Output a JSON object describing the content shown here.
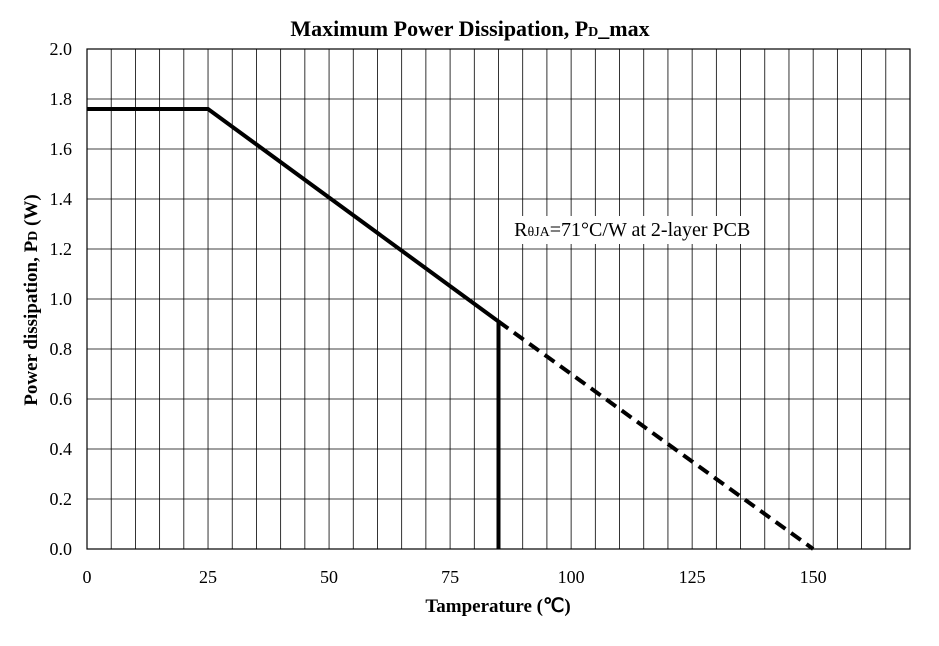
{
  "chart_data": {
    "type": "line",
    "title_main": "Maximum Power Dissipation, P",
    "title_sub": "D",
    "title_tail": "_max",
    "xlabel": "Tamperature (℃)",
    "ylabel_main": "Power dissipation, P",
    "ylabel_sub": "D",
    "ylabel_tail": " (W)",
    "xlim": [
      0,
      170
    ],
    "ylim": [
      0,
      2.0
    ],
    "x_ticks": [
      "0",
      "25",
      "50",
      "75",
      "100",
      "125",
      "150"
    ],
    "x_tick_values": [
      0,
      25,
      50,
      75,
      100,
      125,
      150
    ],
    "y_ticks": [
      "0.0",
      "0.2",
      "0.4",
      "0.6",
      "0.8",
      "1.0",
      "1.2",
      "1.4",
      "1.6",
      "1.8",
      "2.0"
    ],
    "y_tick_values": [
      0,
      0.2,
      0.4,
      0.6,
      0.8,
      1.0,
      1.2,
      1.4,
      1.6,
      1.8,
      2.0
    ],
    "grid": true,
    "x_grid_step": 5,
    "y_grid_step": 0.2,
    "series": [
      {
        "style": "solid",
        "x": [
          0,
          25,
          85,
          85
        ],
        "y": [
          1.76,
          1.76,
          0.91,
          0
        ]
      },
      {
        "style": "dashed",
        "x": [
          85,
          150
        ],
        "y": [
          0.91,
          0
        ]
      }
    ],
    "annotation": {
      "prefix": "R",
      "sub": "θJA",
      "rest": "=71°C/W at 2-layer PCB",
      "x": 87,
      "y": 1.28
    },
    "line_color": "#000000"
  }
}
